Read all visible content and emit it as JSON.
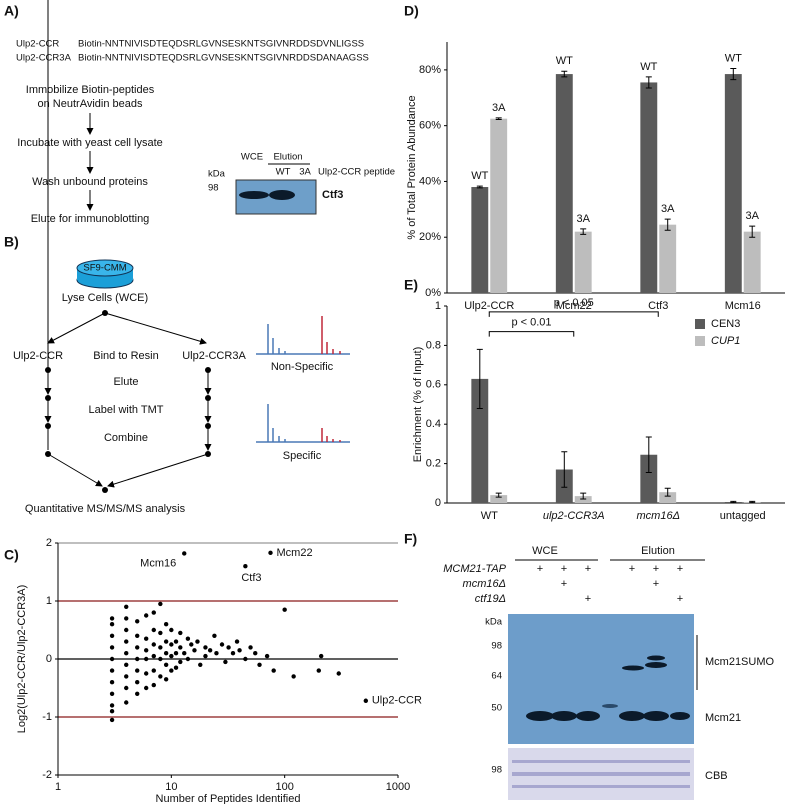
{
  "panel_labels": [
    "A)",
    "B)",
    "C)",
    "D)",
    "E)",
    "F)"
  ],
  "panel_a": {
    "sequences": [
      {
        "name": "Ulp2-CCR",
        "seq": "Biotin-NNTNIVISDTEQDSRLGVNSESKNTSGIVNRDDSDVNLIGSS"
      },
      {
        "name": "Ulp2-CCR3A",
        "seq": "Biotin-NNTNIVISDTEQDSRLGVNSESKNTSGIVNRDDSDANAAGSS"
      }
    ],
    "steps": [
      [
        "Immobilize Biotin-peptides",
        "on NeutrAvidin beads"
      ],
      [
        "Incubate with yeast cell lysate"
      ],
      [
        "Wash unbound proteins"
      ],
      [
        "Elute for immunoblotting"
      ]
    ],
    "blot": {
      "groups": [
        "WCE",
        "Elution"
      ],
      "lanes": [
        "WT",
        "3A"
      ],
      "peptide": "Ulp2-CCR peptide",
      "unit": "kDa",
      "marker": "98",
      "band": "Ctf3"
    }
  },
  "panel_b": {
    "reagent": "SF9-CMM",
    "lyse": "Lyse Cells (WCE)",
    "left": "Ulp2-CCR",
    "right": "Ulp2-CCR3A",
    "steps": [
      "Bind to Resin",
      "Elute",
      "Label with TMT",
      "Combine"
    ],
    "analysis": "Quantitative MS/MS/MS analysis",
    "spectra": [
      "Non-Specific",
      "Specific"
    ]
  },
  "panel_f": {
    "groups": [
      "WCE",
      "Elution"
    ],
    "rows": [
      {
        "label": "MCM21-TAP",
        "marks": [
          "+",
          "+",
          "+",
          "+",
          "+",
          "+"
        ]
      },
      {
        "label": "mcm16Δ",
        "marks": [
          null,
          "+",
          null,
          null,
          "+",
          null
        ]
      },
      {
        "label": "ctf19Δ",
        "marks": [
          null,
          null,
          "+",
          null,
          null,
          "+"
        ]
      }
    ],
    "unit": "kDa",
    "markers": [
      "98",
      "64",
      "50"
    ],
    "bands": [
      "Mcm21SUMO",
      "Mcm21"
    ],
    "stain_marker": "98",
    "stain": "CBB"
  },
  "chart_data": [
    {
      "type": "scatter",
      "xlabel": "Number of Peptides Identified",
      "ylabel": "Log2(Ulp2-CCR/Ulp2-CCR3A)",
      "xlim": [
        1,
        1000
      ],
      "ylim": [
        -2,
        2
      ],
      "xticks": [
        1,
        10,
        100,
        1000
      ],
      "yticks": [
        -2,
        -1,
        0,
        1,
        2
      ],
      "log_x": true,
      "hlines": [
        {
          "y": 2,
          "color": "#999999"
        },
        {
          "y": 1,
          "color": "#8b1a1a"
        },
        {
          "y": 0,
          "color": "#000000"
        },
        {
          "y": -1,
          "color": "#8b1a1a"
        }
      ],
      "series": [
        {
          "color": "#000000",
          "x": [
            3,
            3,
            3,
            3,
            3,
            3,
            3,
            3,
            3,
            3,
            4,
            4,
            4,
            4,
            4,
            4,
            4,
            4,
            5,
            5,
            5,
            5,
            5,
            5,
            5,
            6,
            6,
            6,
            6,
            6,
            6,
            7,
            7,
            7,
            7,
            7,
            7,
            8,
            8,
            8,
            8,
            8,
            9,
            9,
            9,
            9,
            9,
            10,
            10,
            10,
            10,
            11,
            11,
            11,
            12,
            12,
            12,
            13,
            14,
            14,
            15,
            16,
            17,
            18,
            20,
            20,
            22,
            24,
            25,
            28,
            30,
            32,
            35,
            38,
            40,
            45,
            50,
            55,
            60,
            70,
            80,
            100,
            120,
            200,
            210,
            300,
            3,
            4
          ],
          "y": [
            -1.05,
            -0.8,
            -0.6,
            -0.4,
            -0.2,
            0,
            0.2,
            0.4,
            0.6,
            0.7,
            -0.75,
            -0.5,
            -0.3,
            -0.1,
            0.1,
            0.3,
            0.5,
            0.7,
            -0.6,
            -0.4,
            -0.2,
            0,
            0.2,
            0.4,
            0.65,
            -0.5,
            -0.25,
            0,
            0.15,
            0.35,
            0.75,
            -0.45,
            -0.2,
            0.05,
            0.25,
            0.5,
            0.8,
            -0.3,
            0,
            0.2,
            0.45,
            0.95,
            -0.35,
            -0.1,
            0.1,
            0.3,
            0.6,
            -0.2,
            0.05,
            0.25,
            0.5,
            0.1,
            -0.15,
            0.3,
            0.2,
            0.45,
            -0.05,
            0.1,
            0.35,
            0,
            0.25,
            0.15,
            0.3,
            -0.1,
            0.2,
            0.05,
            0.15,
            0.4,
            0.1,
            0.25,
            -0.05,
            0.2,
            0.1,
            0.3,
            0.15,
            0,
            0.2,
            0.1,
            -0.1,
            0.05,
            -0.2,
            0.85,
            -0.3,
            -0.2,
            0.05,
            -0.25,
            -0.9,
            0.9
          ]
        },
        {
          "color": "#000000",
          "x": [
            13,
            75,
            45,
            520
          ],
          "y": [
            1.82,
            1.83,
            1.6,
            -0.72
          ],
          "point_labels": [
            "Mcm16",
            "Mcm22",
            "Ctf3",
            "Ulp2-CCR"
          ]
        }
      ]
    },
    {
      "type": "bar",
      "ylabel": "% of Total Protein Abundance",
      "categories": [
        "Ulp2-CCR",
        "Mcm22",
        "Ctf3",
        "Mcm16"
      ],
      "ylim": [
        0,
        90
      ],
      "yticks": [
        {
          "value": 0,
          "label": "0%"
        },
        {
          "value": 20,
          "label": "20%"
        },
        {
          "value": 40,
          "label": "40%"
        },
        {
          "value": 60,
          "label": "60%"
        },
        {
          "value": 80,
          "label": "80%"
        }
      ],
      "series_labels_on_bars": true,
      "legend": false,
      "series": [
        {
          "name": "WT",
          "color": "#5a5a5a",
          "values": [
            38,
            78.5,
            75.5,
            78.5
          ],
          "errors": [
            0.3,
            1,
            2,
            2
          ]
        },
        {
          "name": "3A",
          "color": "#bdbdbd",
          "values": [
            62.5,
            22,
            24.5,
            22
          ],
          "errors": [
            0.3,
            1,
            2,
            2
          ]
        }
      ]
    },
    {
      "type": "bar",
      "ylabel": "Enrichment (% of Input)",
      "categories": [
        "WT",
        "ulp2-CCR3A",
        "mcm16Δ",
        "untagged"
      ],
      "ylim": [
        0,
        1
      ],
      "yticks": [
        0,
        0.2,
        0.4,
        0.6,
        0.8,
        1
      ],
      "series_labels_on_bars": false,
      "legend": "top-right",
      "annotations": [
        "p < 0.01",
        "p < 0.05"
      ],
      "series": [
        {
          "name": "CEN3",
          "color": "#5a5a5a",
          "values": [
            0.63,
            0.17,
            0.245,
            0.005
          ],
          "errors": [
            0.15,
            0.09,
            0.09,
            0.003
          ]
        },
        {
          "name": "CUP1",
          "color": "#bdbdbd",
          "values": [
            0.04,
            0.035,
            0.055,
            0.005
          ],
          "errors": [
            0.01,
            0.015,
            0.02,
            0.003
          ]
        }
      ]
    }
  ]
}
